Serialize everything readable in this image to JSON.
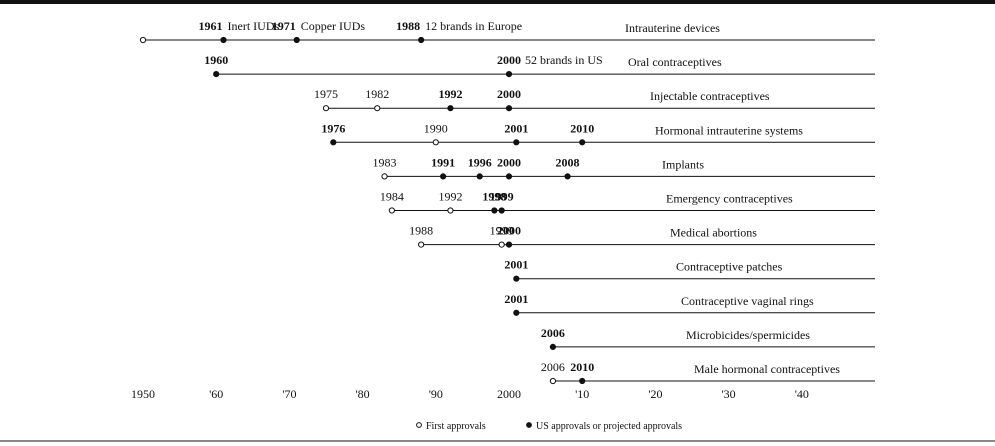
{
  "chart_data": {
    "type": "timeline",
    "xlim": [
      1950,
      2050
    ],
    "xticks": [
      1950,
      {
        "value": 1960,
        "label": "'60"
      },
      {
        "value": 1970,
        "label": "'70"
      },
      {
        "value": 1980,
        "label": "'80"
      },
      {
        "value": 1990,
        "label": "'90"
      },
      2000,
      {
        "value": 2010,
        "label": "'10"
      },
      {
        "value": 2020,
        "label": "'20"
      },
      {
        "value": 2030,
        "label": "'30"
      },
      {
        "value": 2040,
        "label": "'40"
      }
    ],
    "legend": {
      "first": "First approvals",
      "us": "US approvals or projected approvals"
    },
    "rows": [
      {
        "name": "Intrauterine devices",
        "origin": 1950,
        "events": [
          {
            "x": 1961,
            "approval": "us",
            "note": "Inert IUDs"
          },
          {
            "x": 1971,
            "approval": "us",
            "note": "Copper IUDs"
          },
          {
            "x": 1988,
            "approval": "us",
            "note": "12 brands in Europe"
          }
        ]
      },
      {
        "name": "Oral contraceptives",
        "events": [
          {
            "x": 1960,
            "approval": "us"
          },
          {
            "x": 2000,
            "approval": "us",
            "note": "52 brands in US"
          }
        ]
      },
      {
        "name": "Injectable contraceptives",
        "events": [
          {
            "x": 1975,
            "approval": "first"
          },
          {
            "x": 1982,
            "approval": "first"
          },
          {
            "x": 1992,
            "approval": "us"
          },
          {
            "x": 2000,
            "approval": "us"
          }
        ]
      },
      {
        "name": "Hormonal intrauterine systems",
        "events": [
          {
            "x": 1976,
            "approval": "us"
          },
          {
            "x": 1990,
            "approval": "first"
          },
          {
            "x": 2001,
            "approval": "us"
          },
          {
            "x": 2010,
            "approval": "us"
          }
        ]
      },
      {
        "name": "Implants",
        "events": [
          {
            "x": 1983,
            "approval": "first"
          },
          {
            "x": 1991,
            "approval": "us"
          },
          {
            "x": 1996,
            "approval": "us"
          },
          {
            "x": 2000,
            "approval": "us"
          },
          {
            "x": 2008,
            "approval": "us"
          }
        ]
      },
      {
        "name": "Emergency contraceptives",
        "events": [
          {
            "x": 1984,
            "approval": "first"
          },
          {
            "x": 1992,
            "approval": "first"
          },
          {
            "x": 1998,
            "approval": "us"
          },
          {
            "x": 1999,
            "approval": "us"
          }
        ]
      },
      {
        "name": "Medical abortions",
        "events": [
          {
            "x": 1988,
            "approval": "first"
          },
          {
            "x": 1999,
            "approval": "first"
          },
          {
            "x": 2000,
            "approval": "us"
          }
        ]
      },
      {
        "name": "Contraceptive patches",
        "events": [
          {
            "x": 2001,
            "approval": "us"
          }
        ]
      },
      {
        "name": "Contraceptive vaginal rings",
        "events": [
          {
            "x": 2001,
            "approval": "us"
          }
        ]
      },
      {
        "name": "Microbicides/spermicides",
        "events": [
          {
            "x": 2006,
            "approval": "us"
          }
        ]
      },
      {
        "name": "Male hormonal contraceptives",
        "events": [
          {
            "x": 2006,
            "approval": "first"
          },
          {
            "x": 2010,
            "approval": "us"
          }
        ]
      }
    ]
  }
}
